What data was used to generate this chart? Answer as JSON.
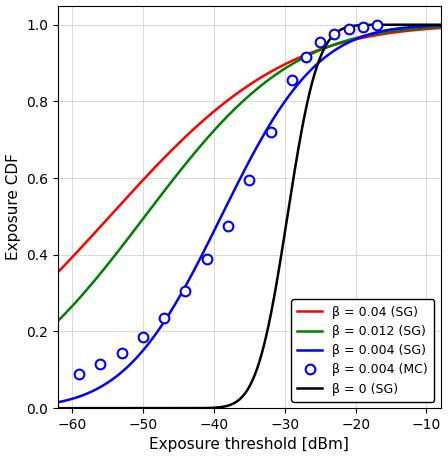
{
  "xlabel": "Exposure threshold [dBm]",
  "ylabel": "Exposure CDF",
  "xlim": [
    -62,
    -8
  ],
  "ylim": [
    -0.02,
    1.05
  ],
  "xticks": [
    -60,
    -50,
    -40,
    -30,
    -20,
    -10
  ],
  "yticks": [
    0.0,
    0.2,
    0.4,
    0.6,
    0.8,
    1.0
  ],
  "red": {
    "color": "#ff0000",
    "label": "β = 0.04 (SG)",
    "lw": 1.8,
    "pts_x": [
      -60,
      -55,
      -50,
      -45,
      -40,
      -35,
      -30,
      -25,
      -20
    ],
    "pts_y": [
      0.41,
      0.5,
      0.59,
      0.67,
      0.75,
      0.84,
      0.91,
      0.96,
      0.99
    ]
  },
  "green": {
    "color": "#008000",
    "label": "β = 0.012 (SG)",
    "lw": 1.8,
    "pts_x": [
      -60,
      -55,
      -50,
      -45,
      -40,
      -35,
      -30,
      -25
    ],
    "pts_y": [
      0.3,
      0.38,
      0.48,
      0.58,
      0.7,
      0.82,
      0.92,
      0.97
    ]
  },
  "blue_sg": {
    "color": "#0000ff",
    "label": "β = 0.004 (SG)",
    "lw": 1.8,
    "pts_x": [
      -60,
      -56,
      -53,
      -50,
      -47,
      -44,
      -41,
      -38,
      -35,
      -32,
      -29,
      -27,
      -25,
      -23,
      -21,
      -19,
      -17
    ],
    "pts_y": [
      0.09,
      0.115,
      0.145,
      0.185,
      0.235,
      0.305,
      0.39,
      0.475,
      0.595,
      0.72,
      0.855,
      0.915,
      0.955,
      0.975,
      0.99,
      0.995,
      1.0
    ]
  },
  "black": {
    "color": "#000000",
    "label": "β = 0 (SG)",
    "lw": 1.8,
    "pts_x": [
      -40,
      -37,
      -35,
      -33,
      -31,
      -29,
      -27,
      -25,
      -23
    ],
    "pts_y": [
      0.005,
      0.02,
      0.06,
      0.16,
      0.34,
      0.57,
      0.78,
      0.92,
      0.98
    ]
  },
  "mc": {
    "color": "#0000ff",
    "label": "β = 0.004 (MC)",
    "markersize": 7,
    "x": [
      -59,
      -56,
      -53,
      -50,
      -47,
      -44,
      -41,
      -38,
      -35,
      -32,
      -29,
      -27,
      -25,
      -23,
      -21,
      -19,
      -17
    ],
    "y": [
      0.09,
      0.115,
      0.145,
      0.185,
      0.235,
      0.305,
      0.39,
      0.475,
      0.595,
      0.72,
      0.855,
      0.915,
      0.955,
      0.975,
      0.99,
      0.995,
      1.0
    ]
  },
  "grid_color": "#d3d3d3",
  "figsize": [
    4.48,
    4.58
  ],
  "dpi": 100
}
